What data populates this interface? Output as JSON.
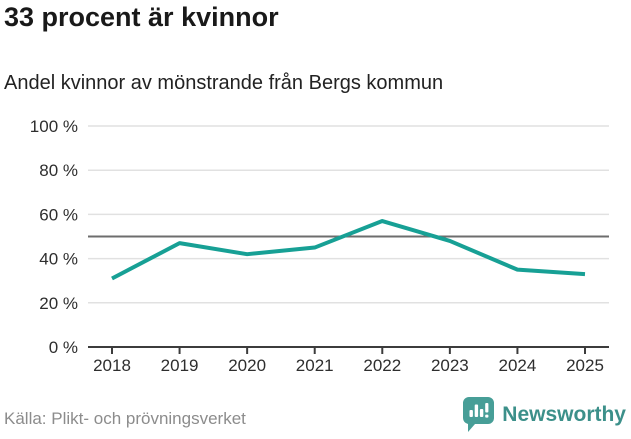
{
  "header": {
    "title": "33 procent är kvinnor",
    "subtitle": "Andel kvinnor av mönstrande från Bergs kommun"
  },
  "chart_data": {
    "type": "line",
    "title": "Andel kvinnor av mönstrande från Bergs kommun",
    "x": [
      "2018",
      "2019",
      "2020",
      "2021",
      "2022",
      "2023",
      "2024",
      "2025"
    ],
    "series": [
      {
        "name": "Andel kvinnor (%)",
        "values": [
          31,
          47,
          42,
          45,
          57,
          48,
          35,
          33
        ]
      }
    ],
    "ylim": [
      0,
      100
    ],
    "yticks": [
      0,
      20,
      40,
      60,
      80,
      100
    ],
    "ytick_suffix": " %",
    "reference_line": 50,
    "grid": true,
    "legend": false
  },
  "footer": {
    "source": "Källa: Plikt- och prövningsverket",
    "brand": "Newsworthy"
  },
  "colors": {
    "line": "#17A095",
    "grid": "#E1E1E1",
    "reference": "#6D6D6D",
    "axis": "#3C3C3C",
    "tick_label": "#2E2E2E",
    "logo": "#479E97",
    "brand_text": "#3C908A"
  }
}
